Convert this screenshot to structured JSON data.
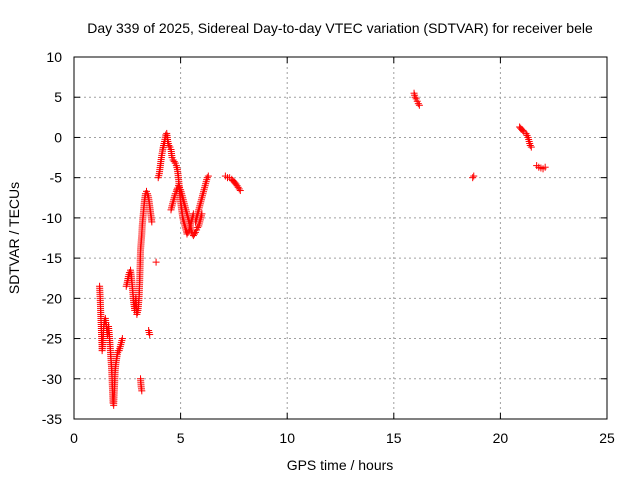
{
  "chart_data": {
    "type": "scatter",
    "title": "Day 339 of 2025, Sidereal Day-to-day VTEC variation (SDTVAR) for receiver bele",
    "xlabel": "GPS time / hours",
    "ylabel": "SDTVAR / TECUs",
    "xlim": [
      0,
      25
    ],
    "ylim": [
      -35,
      10
    ],
    "xticks": [
      "0",
      "5",
      "10",
      "15",
      "20",
      "25"
    ],
    "yticks": [
      "10",
      "5",
      "0",
      "-5",
      "-10",
      "-15",
      "-20",
      "-25",
      "-30",
      "-35"
    ],
    "grid": true,
    "marker": "+",
    "color": "#ff0000",
    "segments": [
      [
        [
          1.2,
          -18.5
        ],
        [
          1.22,
          -19.5
        ],
        [
          1.25,
          -21.5
        ],
        [
          1.27,
          -23
        ],
        [
          1.3,
          -25
        ],
        [
          1.32,
          -26.5
        ],
        [
          1.35,
          -25.5
        ],
        [
          1.38,
          -24
        ],
        [
          1.42,
          -23
        ],
        [
          1.47,
          -22.5
        ],
        [
          1.52,
          -23.5
        ],
        [
          1.57,
          -24.5
        ],
        [
          1.62,
          -23.5
        ],
        [
          1.67,
          -25
        ],
        [
          1.72,
          -27
        ],
        [
          1.77,
          -29
        ],
        [
          1.8,
          -31
        ],
        [
          1.83,
          -33
        ],
        [
          1.86,
          -33.3
        ],
        [
          1.9,
          -31
        ],
        [
          1.93,
          -29
        ],
        [
          1.97,
          -28
        ],
        [
          2.0,
          -27.5
        ],
        [
          2.03,
          -27
        ],
        [
          2.07,
          -26.5
        ],
        [
          2.12,
          -26.5
        ],
        [
          2.17,
          -26
        ],
        [
          2.22,
          -25.5
        ],
        [
          2.27,
          -25
        ]
      ],
      [
        [
          2.45,
          -18.5
        ],
        [
          2.5,
          -18
        ],
        [
          2.55,
          -17.3
        ],
        [
          2.6,
          -16.8
        ],
        [
          2.65,
          -16.5
        ],
        [
          2.7,
          -17.5
        ],
        [
          2.75,
          -19
        ],
        [
          2.8,
          -20.5
        ],
        [
          2.85,
          -21.5
        ],
        [
          2.9,
          -20
        ],
        [
          2.95,
          -22
        ],
        [
          3.0,
          -21.5
        ],
        [
          3.05,
          -20
        ],
        [
          3.08,
          -18
        ],
        [
          3.1,
          -16
        ],
        [
          3.12,
          -14
        ],
        [
          3.15,
          -13
        ],
        [
          3.18,
          -12
        ],
        [
          3.2,
          -11
        ],
        [
          3.25,
          -9.5
        ],
        [
          3.3,
          -8
        ],
        [
          3.35,
          -7
        ],
        [
          3.4,
          -6.7
        ],
        [
          3.45,
          -7
        ],
        [
          3.5,
          -7.5
        ],
        [
          3.55,
          -8.5
        ],
        [
          3.6,
          -9.5
        ],
        [
          3.65,
          -10.5
        ]
      ],
      [
        [
          3.12,
          -30
        ],
        [
          3.15,
          -31
        ],
        [
          3.18,
          -31.5
        ]
      ],
      [
        [
          3.5,
          -24
        ],
        [
          3.55,
          -24.5
        ]
      ],
      [
        [
          3.85,
          -15.5
        ]
      ],
      [
        [
          3.95,
          -5
        ],
        [
          4.0,
          -4.5
        ],
        [
          4.05,
          -3.5
        ],
        [
          4.1,
          -2.5
        ],
        [
          4.15,
          -1.7
        ],
        [
          4.2,
          -1
        ],
        [
          4.25,
          -0.5
        ],
        [
          4.3,
          0.3
        ],
        [
          4.35,
          0.5
        ],
        [
          4.4,
          -0.5
        ],
        [
          4.45,
          -1
        ],
        [
          4.5,
          -1.2
        ],
        [
          4.55,
          -1.5
        ],
        [
          4.6,
          -2.5
        ],
        [
          4.65,
          -2.8
        ],
        [
          4.7,
          -3
        ],
        [
          4.75,
          -3.2
        ],
        [
          4.8,
          -3.5
        ],
        [
          4.85,
          -4
        ],
        [
          4.9,
          -5
        ],
        [
          4.95,
          -6.5
        ],
        [
          5.0,
          -8
        ],
        [
          5.05,
          -9
        ],
        [
          5.1,
          -10
        ],
        [
          5.15,
          -10.5
        ],
        [
          5.2,
          -11
        ],
        [
          5.25,
          -11.5
        ],
        [
          5.3,
          -12
        ],
        [
          5.35,
          -11.8
        ],
        [
          5.4,
          -11.5
        ],
        [
          5.45,
          -11
        ],
        [
          5.5,
          -10.5
        ],
        [
          5.55,
          -10
        ],
        [
          5.6,
          -9.5
        ]
      ],
      [
        [
          4.55,
          -9
        ],
        [
          4.6,
          -8.5
        ],
        [
          4.65,
          -8
        ],
        [
          4.7,
          -7.5
        ],
        [
          4.75,
          -7
        ],
        [
          4.8,
          -6.7
        ],
        [
          4.85,
          -6.3
        ],
        [
          4.9,
          -6
        ],
        [
          4.95,
          -6.2
        ],
        [
          5.0,
          -6.5
        ],
        [
          5.05,
          -7
        ],
        [
          5.1,
          -7.5
        ],
        [
          5.15,
          -8
        ],
        [
          5.2,
          -8.5
        ],
        [
          5.25,
          -9
        ],
        [
          5.3,
          -9.5
        ],
        [
          5.35,
          -10
        ],
        [
          5.4,
          -10.5
        ],
        [
          5.45,
          -11
        ],
        [
          5.5,
          -11.5
        ],
        [
          5.55,
          -12
        ],
        [
          5.6,
          -12.2
        ],
        [
          5.65,
          -12
        ],
        [
          5.7,
          -11.8
        ],
        [
          5.75,
          -11.5
        ],
        [
          5.8,
          -11.2
        ],
        [
          5.85,
          -11
        ],
        [
          5.9,
          -10.5
        ],
        [
          5.95,
          -10
        ],
        [
          6.0,
          -9.5
        ]
      ],
      [
        [
          5.7,
          -10.5
        ],
        [
          5.75,
          -10
        ],
        [
          5.8,
          -9.5
        ],
        [
          5.85,
          -9
        ],
        [
          5.9,
          -8.5
        ],
        [
          5.95,
          -8
        ],
        [
          6.0,
          -7.5
        ],
        [
          6.05,
          -7
        ],
        [
          6.1,
          -6.5
        ],
        [
          6.15,
          -6
        ],
        [
          6.2,
          -5.5
        ],
        [
          6.25,
          -5
        ],
        [
          6.3,
          -4.8
        ]
      ],
      [
        [
          7.1,
          -4.8
        ],
        [
          7.2,
          -5
        ],
        [
          7.3,
          -5
        ],
        [
          7.4,
          -5.2
        ],
        [
          7.5,
          -5.5
        ],
        [
          7.6,
          -5.8
        ],
        [
          7.7,
          -6.2
        ],
        [
          7.8,
          -6.6
        ]
      ],
      [
        [
          15.95,
          5.5
        ],
        [
          16.0,
          5.0
        ],
        [
          16.05,
          4.8
        ],
        [
          16.1,
          4.5
        ],
        [
          16.15,
          4.2
        ],
        [
          16.2,
          4.0
        ]
      ],
      [
        [
          18.7,
          -5
        ],
        [
          18.75,
          -4.8
        ]
      ],
      [
        [
          20.9,
          1.3
        ],
        [
          21.0,
          1.0
        ],
        [
          21.1,
          0.7
        ],
        [
          21.2,
          0.5
        ],
        [
          21.3,
          0
        ],
        [
          21.35,
          -0.5
        ],
        [
          21.4,
          -1
        ],
        [
          21.45,
          -1.2
        ]
      ],
      [
        [
          21.7,
          -3.5
        ],
        [
          21.8,
          -3.7
        ],
        [
          21.9,
          -3.8
        ],
        [
          22.0,
          -3.9
        ],
        [
          22.1,
          -3.7
        ]
      ]
    ]
  }
}
